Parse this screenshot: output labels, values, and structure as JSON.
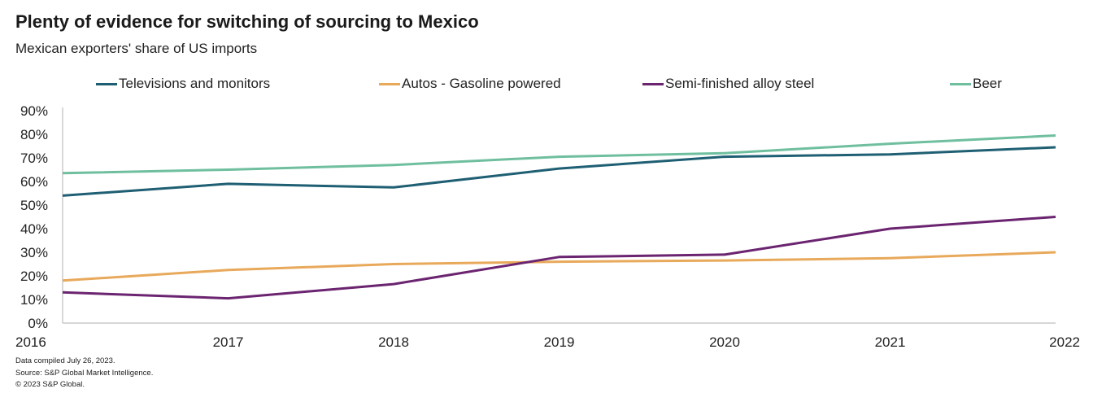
{
  "header": {
    "title": "Plenty of evidence for switching  of sourcing to Mexico",
    "subtitle": "Mexican exporters' share of US imports"
  },
  "footer": {
    "lines": [
      "Data compiled July 26, 2023.",
      "Source: S&P Global Market Intelligence.",
      "© 2023 S&P Global."
    ]
  },
  "chart_data": {
    "type": "line",
    "title": "Plenty of evidence for switching  of sourcing to Mexico",
    "subtitle": "Mexican exporters' share of US imports",
    "xlabel": "",
    "ylabel": "",
    "x": [
      "2016",
      "2017",
      "2018",
      "2019",
      "2020",
      "2021",
      "2022"
    ],
    "ylim": [
      0,
      90
    ],
    "yticks": [
      0,
      10,
      20,
      30,
      40,
      50,
      60,
      70,
      80,
      90
    ],
    "ytick_labels": [
      "0%",
      "10%",
      "20%",
      "30%",
      "40%",
      "50%",
      "60%",
      "70%",
      "80%",
      "90%"
    ],
    "grid": false,
    "legend_position": "top",
    "series": [
      {
        "name": "Televisions and monitors",
        "color": "#1f5f73",
        "values": [
          54,
          59,
          57.5,
          65.5,
          70.5,
          71.5,
          74.5
        ]
      },
      {
        "name": "Autos - Gasoline powered",
        "color": "#e8a95b",
        "values": [
          18,
          22.5,
          25,
          26,
          26.5,
          27.5,
          30
        ]
      },
      {
        "name": "Semi-finished alloy steel",
        "color": "#6b2470",
        "values": [
          13,
          10.5,
          16.5,
          28,
          29,
          40,
          45
        ]
      },
      {
        "name": "Beer",
        "color": "#6fbf9f",
        "values": [
          63.5,
          65,
          67,
          70.5,
          72,
          76,
          79.5
        ]
      }
    ]
  }
}
